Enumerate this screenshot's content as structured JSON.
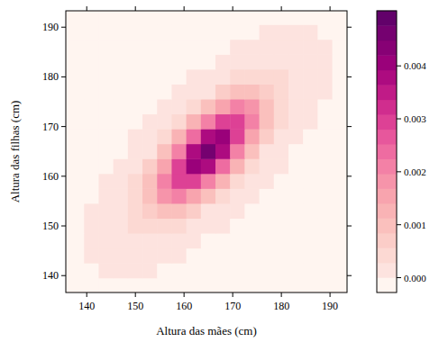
{
  "chart_data": {
    "type": "heatmap",
    "x_label": "Altura das mães (cm)",
    "y_label": "Altura das filhas (cm)",
    "x": [
      138,
      141,
      144,
      147,
      150,
      153,
      156,
      159,
      162,
      165,
      168,
      171,
      174,
      177,
      180,
      183,
      186,
      189,
      192
    ],
    "y": [
      138,
      141,
      144,
      147,
      150,
      153,
      156,
      159,
      162,
      165,
      168,
      171,
      174,
      177,
      180,
      183,
      186,
      189,
      192
    ],
    "z": [
      [
        0,
        0,
        0,
        0,
        0,
        0,
        0,
        0,
        0,
        0,
        0,
        0,
        0,
        0,
        0,
        0,
        0,
        0,
        0
      ],
      [
        0,
        0,
        9e-06,
        1.3e-05,
        1.3e-05,
        8e-06,
        0,
        0,
        0,
        0,
        0,
        0,
        0,
        0,
        0,
        0,
        0,
        0,
        0
      ],
      [
        0,
        9e-06,
        2.4e-05,
        4.2e-05,
        5.2e-05,
        4.5e-05,
        2.8e-05,
        1.2e-05,
        0,
        0,
        0,
        0,
        0,
        0,
        0,
        0,
        0,
        0,
        0
      ],
      [
        0,
        1.3e-05,
        4.2e-05,
        9.6e-05,
        0.000152,
        0.000169,
        0.000132,
        7.2e-05,
        2.8e-05,
        0,
        0,
        0,
        0,
        0,
        0,
        0,
        0,
        0,
        0
      ],
      [
        0,
        1.3e-05,
        5.2e-05,
        0.000152,
        0.000311,
        0.000444,
        0.000444,
        0.000311,
        0.000152,
        5.2e-05,
        1.3e-05,
        0,
        0,
        0,
        0,
        0,
        0,
        0,
        0
      ],
      [
        0,
        8e-06,
        4.5e-05,
        0.000169,
        0.000444,
        0.000813,
        0.001044,
        0.000938,
        0.00059,
        0.00026,
        8e-05,
        1.7e-05,
        0,
        0,
        0,
        0,
        0,
        0,
        0
      ],
      [
        0,
        0,
        2.8e-05,
        0.000132,
        0.000444,
        0.001044,
        0.001719,
        0.001982,
        0.001601,
        0.000905,
        0.000358,
        9.9e-05,
        1.9e-05,
        0,
        0,
        0,
        0,
        0,
        0
      ],
      [
        0,
        0,
        1.2e-05,
        7.2e-05,
        0.000311,
        0.000938,
        0.001982,
        0.002934,
        0.003041,
        0.002206,
        0.001121,
        0.000399,
        9.9e-05,
        1.7e-05,
        0,
        0,
        0,
        0,
        0
      ],
      [
        0,
        0,
        0,
        2.8e-05,
        0.000152,
        0.00059,
        0.001601,
        0.003041,
        0.004043,
        0.003766,
        0.002455,
        0.001121,
        0.000358,
        8e-05,
        1.3e-05,
        0,
        0,
        0,
        0
      ],
      [
        0,
        0,
        0,
        0,
        5.2e-05,
        0.00026,
        0.000905,
        0.002206,
        0.003766,
        0.0045,
        0.003766,
        0.002206,
        0.000905,
        0.00026,
        5.2e-05,
        0,
        0,
        0,
        0
      ],
      [
        0,
        0,
        0,
        0,
        1.3e-05,
        8e-05,
        0.000358,
        0.001121,
        0.002455,
        0.003766,
        0.004043,
        0.003041,
        0.001601,
        0.00059,
        0.000152,
        2.8e-05,
        0,
        0,
        0
      ],
      [
        0,
        0,
        0,
        0,
        0,
        1.7e-05,
        9.9e-05,
        0.000399,
        0.001121,
        0.002206,
        0.003041,
        0.002934,
        0.001982,
        0.000938,
        0.000311,
        7.2e-05,
        1.2e-05,
        0,
        0
      ],
      [
        0,
        0,
        0,
        0,
        0,
        0,
        1.9e-05,
        9.9e-05,
        0.000358,
        0.000905,
        0.001601,
        0.001982,
        0.001719,
        0.001044,
        0.000444,
        0.000132,
        2.8e-05,
        0,
        0
      ],
      [
        0,
        0,
        0,
        0,
        0,
        0,
        0,
        1.7e-05,
        8e-05,
        0.00026,
        0.00059,
        0.000938,
        0.001044,
        0.000813,
        0.000444,
        0.000169,
        4.5e-05,
        8e-06,
        0
      ],
      [
        0,
        0,
        0,
        0,
        0,
        0,
        0,
        0,
        1.3e-05,
        5.2e-05,
        0.000152,
        0.000311,
        0.000444,
        0.000444,
        0.000311,
        0.000152,
        5.2e-05,
        1.3e-05,
        0
      ],
      [
        0,
        0,
        0,
        0,
        0,
        0,
        0,
        0,
        0,
        0,
        2.8e-05,
        7.2e-05,
        0.000132,
        0.000169,
        0.000152,
        9.6e-05,
        4.2e-05,
        1.3e-05,
        0
      ],
      [
        0,
        0,
        0,
        0,
        0,
        0,
        0,
        0,
        0,
        0,
        0,
        1.2e-05,
        2.8e-05,
        4.5e-05,
        5.2e-05,
        4.2e-05,
        2.4e-05,
        9e-06,
        0
      ],
      [
        0,
        0,
        0,
        0,
        0,
        0,
        0,
        0,
        0,
        0,
        0,
        0,
        0,
        8e-06,
        1.3e-05,
        1.3e-05,
        9e-06,
        0,
        0
      ],
      [
        0,
        0,
        0,
        0,
        0,
        0,
        0,
        0,
        0,
        0,
        0,
        0,
        0,
        0,
        0,
        0,
        0,
        0,
        0
      ]
    ],
    "xlim": [
      135.7,
      193.5
    ],
    "ylim": [
      136.6,
      193.3
    ],
    "xticks": [
      140,
      150,
      160,
      170,
      180,
      190
    ],
    "yticks": [
      140,
      150,
      160,
      170,
      180,
      190
    ],
    "colorbar": {
      "range": [
        -0.00028,
        0.00504
      ],
      "breaks": [
        -0.00028,
        0,
        0.00028,
        0.00056,
        0.00084,
        0.00112,
        0.0014,
        0.00168,
        0.00196,
        0.00224,
        0.00252,
        0.0028,
        0.00308,
        0.00336,
        0.00364,
        0.00392,
        0.0042,
        0.00448,
        0.00476,
        0.00504
      ],
      "colors": [
        "#fff5f0",
        "#fde3df",
        "#fcd9d3",
        "#fbcdc8",
        "#fac0bd",
        "#f9b3b5",
        "#f8a4ae",
        "#f694aa",
        "#f381a6",
        "#ee6ca1",
        "#e7579c",
        "#dd4195",
        "#d02d8e",
        "#c01b87",
        "#ad0b80",
        "#9a017a",
        "#870175",
        "#750170",
        "#62016a"
      ],
      "ticks": [
        {
          "value": 0,
          "label": "0.000"
        },
        {
          "value": 0.001,
          "label": "0.001"
        },
        {
          "value": 0.002,
          "label": "0.002"
        },
        {
          "value": 0.003,
          "label": "0.003"
        },
        {
          "value": 0.004,
          "label": "0.004"
        }
      ]
    }
  }
}
